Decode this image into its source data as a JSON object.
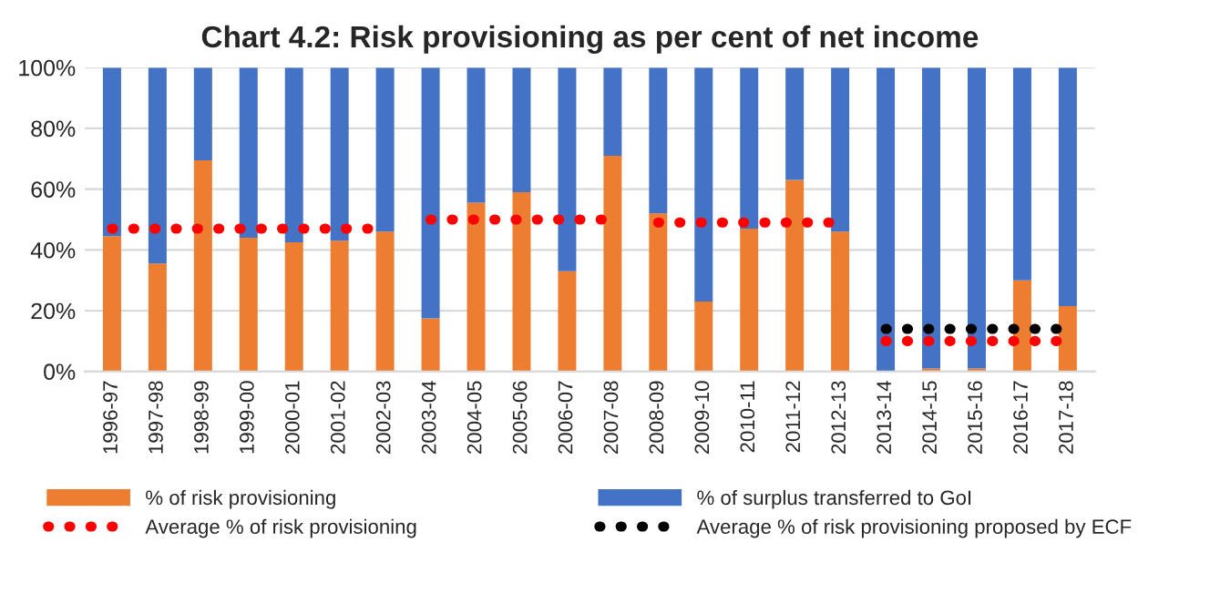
{
  "chart_data": {
    "type": "bar",
    "title": "Chart 4.2: Risk provisioning as per cent of net income",
    "stacked": true,
    "categories": [
      "1996-97",
      "1997-98",
      "1998-99",
      "1999-00",
      "2000-01",
      "2001-02",
      "2002-03",
      "2003-04",
      "2004-05",
      "2005-06",
      "2006-07",
      "2007-08",
      "2008-09",
      "2009-10",
      "2010-11",
      "2011-12",
      "2012-13",
      "2013-14",
      "2014-15",
      "2015-16",
      "2016-17",
      "2017-18"
    ],
    "series": [
      {
        "name": "% of risk provisioning",
        "color": "#ed7d31",
        "values": [
          44.5,
          35.5,
          69.5,
          44,
          42.5,
          43,
          46,
          17.5,
          55.5,
          59,
          33,
          71,
          52,
          23,
          47,
          63,
          46,
          0,
          1,
          1,
          30,
          21.5
        ]
      },
      {
        "name": "% of surplus transferred to GoI",
        "color": "#4472c4",
        "values": [
          55.5,
          64.5,
          30.5,
          56,
          57.5,
          57,
          54,
          82.5,
          44.5,
          41,
          67,
          29,
          48,
          77,
          53,
          37,
          54,
          100,
          99,
          99,
          70,
          78.5
        ]
      },
      {
        "name": "Average % of risk provisioning",
        "type": "line",
        "color": "#ff0000",
        "line_style": "dotted",
        "values": [
          47,
          47,
          47,
          47,
          47,
          47,
          47,
          50,
          50,
          50,
          50,
          50,
          49,
          49,
          49,
          49,
          49,
          10,
          10,
          10,
          10,
          10
        ]
      },
      {
        "name": "Average % of risk provisioning proposed by ECF",
        "type": "line",
        "color": "#000000",
        "line_style": "dotted",
        "values": [
          null,
          null,
          null,
          null,
          null,
          null,
          null,
          null,
          null,
          null,
          null,
          null,
          null,
          null,
          null,
          null,
          null,
          14,
          14,
          14,
          14,
          14
        ]
      }
    ],
    "ylim": [
      0,
      100
    ],
    "yticks": [
      {
        "value": 0,
        "label": "0%"
      },
      {
        "value": 20,
        "label": "20%"
      },
      {
        "value": 40,
        "label": "40%"
      },
      {
        "value": 60,
        "label": "60%"
      },
      {
        "value": 80,
        "label": "80%"
      },
      {
        "value": 100,
        "label": "100%"
      }
    ],
    "grid": "y",
    "legend": "bottom"
  }
}
